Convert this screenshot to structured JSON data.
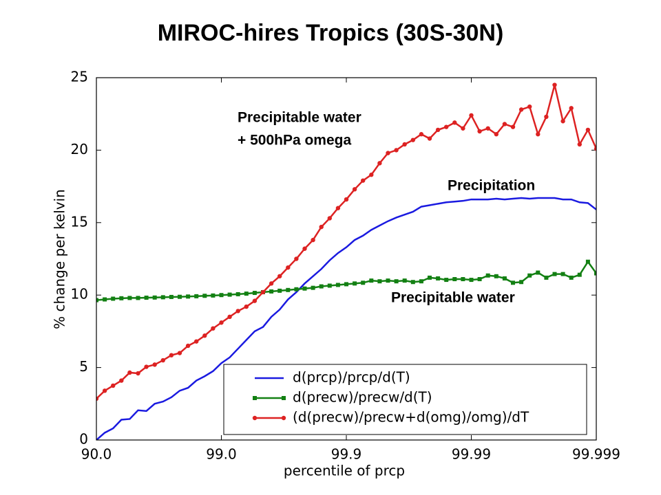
{
  "chart_data": {
    "type": "line",
    "title": "MIROC-hires Tropics (30S-30N)",
    "xlabel": "percentile of prcp",
    "ylabel": "% change per kelvin",
    "xlim": [
      0,
      60
    ],
    "xticks": [
      {
        "value": 0,
        "label": "90.0"
      },
      {
        "value": 15,
        "label": "99.0"
      },
      {
        "value": 30,
        "label": "99.9"
      },
      {
        "value": 45,
        "label": "99.99"
      },
      {
        "value": 60,
        "label": "99.999"
      }
    ],
    "ylim": [
      0,
      25
    ],
    "yticks": [
      0,
      5,
      10,
      15,
      20,
      25
    ],
    "legend": "lower right",
    "series": [
      {
        "name": "d(prcp)/prcp/d(T)",
        "color": "#1a1ae0",
        "marker": null,
        "values": [
          0,
          0.5,
          0.8,
          1.4,
          1.45,
          2.05,
          2.0,
          2.5,
          2.65,
          2.95,
          3.4,
          3.6,
          4.1,
          4.4,
          4.75,
          5.3,
          5.7,
          6.3,
          6.9,
          7.5,
          7.8,
          8.5,
          9.0,
          9.7,
          10.2,
          10.8,
          11.3,
          11.8,
          12.4,
          12.9,
          13.3,
          13.8,
          14.1,
          14.5,
          14.8,
          15.1,
          15.35,
          15.55,
          15.75,
          16.1,
          16.2,
          16.3,
          16.4,
          16.45,
          16.5,
          16.6,
          16.6,
          16.6,
          16.65,
          16.6,
          16.65,
          16.7,
          16.65,
          16.7,
          16.7,
          16.7,
          16.6,
          16.6,
          16.4,
          16.35,
          15.9
        ]
      },
      {
        "name": "d(precw)/precw/d(T)",
        "color": "#138013",
        "marker": "square",
        "values": [
          9.65,
          9.7,
          9.75,
          9.78,
          9.8,
          9.8,
          9.82,
          9.83,
          9.85,
          9.87,
          9.88,
          9.9,
          9.92,
          9.95,
          9.97,
          10.0,
          10.03,
          10.06,
          10.1,
          10.15,
          10.2,
          10.25,
          10.3,
          10.35,
          10.4,
          10.45,
          10.5,
          10.6,
          10.65,
          10.7,
          10.75,
          10.8,
          10.85,
          11.0,
          10.95,
          11.0,
          10.95,
          11.0,
          10.9,
          10.95,
          11.2,
          11.15,
          11.05,
          11.1,
          11.1,
          11.05,
          11.1,
          11.35,
          11.3,
          11.15,
          10.85,
          10.9,
          11.35,
          11.55,
          11.2,
          11.45,
          11.45,
          11.2,
          11.4,
          12.3,
          11.5
        ]
      },
      {
        "name": "(d(precw)/precw+d(omg)/omg)/dT",
        "color": "#dd2222",
        "marker": "circle",
        "values": [
          2.85,
          3.4,
          3.75,
          4.1,
          4.65,
          4.6,
          5.05,
          5.2,
          5.5,
          5.85,
          6.0,
          6.5,
          6.8,
          7.2,
          7.7,
          8.1,
          8.5,
          8.9,
          9.2,
          9.6,
          10.2,
          10.8,
          11.3,
          11.9,
          12.5,
          13.2,
          13.8,
          14.7,
          15.3,
          16.0,
          16.6,
          17.3,
          17.9,
          18.3,
          19.1,
          19.8,
          20.0,
          20.4,
          20.7,
          21.1,
          20.8,
          21.4,
          21.6,
          21.9,
          21.5,
          22.4,
          21.3,
          21.5,
          21.1,
          21.8,
          21.6,
          22.8,
          23.0,
          21.1,
          22.3,
          24.5,
          22.0,
          22.9,
          20.4,
          21.4,
          20.1
        ]
      }
    ],
    "annotations": [
      {
        "text": [
          "Precipitable water",
          "+ 500hPa omega"
        ],
        "color": "#e84848"
      },
      {
        "text": [
          "Precipitation"
        ],
        "color": "#3a3acc"
      },
      {
        "text": [
          "Precipitable water"
        ],
        "color": "#1f8a1f"
      }
    ]
  }
}
